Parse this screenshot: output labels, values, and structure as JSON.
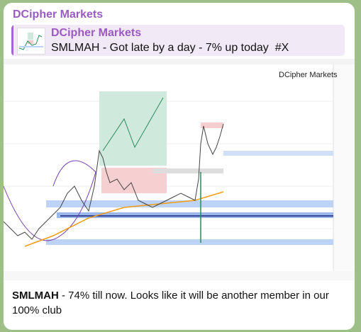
{
  "channel": {
    "name": "DCipher Markets"
  },
  "reply": {
    "name": "DCipher Markets",
    "text": "SMLMAH - Got late by a day - 7% up today  #X"
  },
  "image": {
    "watermark": "DCipher Markets"
  },
  "message": {
    "bold": "SMLMAH",
    "text": " - 74% till now. Looks like it will be another member in our 100% club"
  }
}
